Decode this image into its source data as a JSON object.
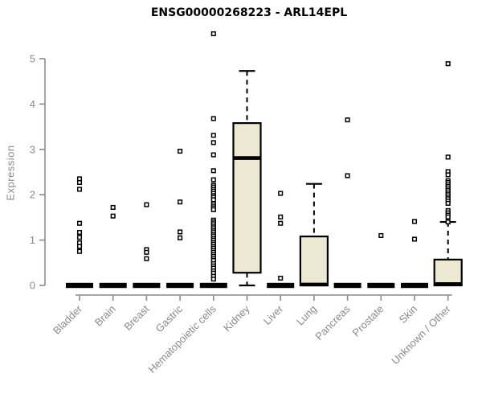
{
  "title": "ENSG00000268223 - ARL14EPL",
  "y_axis": {
    "label": "Expression",
    "ticks": [
      0,
      1,
      2,
      3,
      4,
      5
    ]
  },
  "x_axis": {
    "categories": [
      "Bladder",
      "Brain",
      "Breast",
      "Gastric",
      "Hematopoietic cells",
      "Kidney",
      "Liver",
      "Lung",
      "Pancreas",
      "Prostate",
      "Skin",
      "Unknown / Other"
    ]
  },
  "colors": {
    "background": "#ffffff",
    "box_fill": "#ede8d1",
    "box_border": "#000000",
    "median": "#000000",
    "whisker": "#000000",
    "outlier_stroke": "#000000",
    "outlier_fill": "#ffffff",
    "axis_line": "#8c8c8c",
    "axis_text": "#8a8a8a",
    "title_text": "#000000"
  },
  "chart_data": {
    "type": "boxplot",
    "title": "ENSG00000268223 - ARL14EPL",
    "xlabel": "",
    "ylabel": "Expression",
    "ylim": [
      0,
      5.6
    ],
    "y_ticks": [
      0,
      1,
      2,
      3,
      4,
      5
    ],
    "grid": false,
    "legend": false,
    "categories": [
      "Bladder",
      "Brain",
      "Breast",
      "Gastric",
      "Hematopoietic cells",
      "Kidney",
      "Liver",
      "Lung",
      "Pancreas",
      "Prostate",
      "Skin",
      "Unknown / Other"
    ],
    "series": [
      {
        "category": "Bladder",
        "whisker_low": 0,
        "q1": 0,
        "median": 0,
        "q3": 0,
        "whisker_high": 0,
        "outliers": [
          2.35,
          2.27,
          2.12,
          1.37,
          1.17,
          1.06,
          0.94,
          0.86,
          0.75
        ]
      },
      {
        "category": "Brain",
        "whisker_low": 0,
        "q1": 0,
        "median": 0,
        "q3": 0,
        "whisker_high": 0,
        "outliers": [
          1.72,
          1.53
        ]
      },
      {
        "category": "Breast",
        "whisker_low": 0,
        "q1": 0,
        "median": 0,
        "q3": 0,
        "whisker_high": 0,
        "outliers": [
          1.78,
          0.79,
          0.73,
          0.59
        ]
      },
      {
        "category": "Gastric",
        "whisker_low": 0,
        "q1": 0,
        "median": 0,
        "q3": 0,
        "whisker_high": 0,
        "outliers": [
          2.96,
          1.84,
          1.18,
          1.05
        ]
      },
      {
        "category": "Hematopoietic cells",
        "whisker_low": 0,
        "q1": 0,
        "median": 0,
        "q3": 0,
        "whisker_high": 0,
        "outliers": [
          5.55,
          3.68,
          3.31,
          3.15,
          2.88,
          2.53,
          2.33,
          2.21,
          2.17,
          2.12,
          2.08,
          2.03,
          1.98,
          1.94,
          1.89,
          1.8,
          1.75,
          1.71,
          1.67,
          1.44,
          1.4,
          1.36,
          1.31,
          1.27,
          1.22,
          1.18,
          1.13,
          1.09,
          1.04,
          1.0,
          0.95,
          0.91,
          0.86,
          0.82,
          0.77,
          0.73,
          0.68,
          0.64,
          0.59,
          0.55,
          0.48,
          0.43,
          0.38,
          0.32,
          0.27,
          0.2,
          0.14
        ]
      },
      {
        "category": "Kidney",
        "whisker_low": 0,
        "q1": 0.28,
        "median": 2.81,
        "q3": 3.58,
        "whisker_high": 4.73,
        "outliers": []
      },
      {
        "category": "Liver",
        "whisker_low": 0,
        "q1": 0,
        "median": 0,
        "q3": 0,
        "whisker_high": 0,
        "outliers": [
          2.03,
          1.51,
          1.37,
          0.16
        ]
      },
      {
        "category": "Lung",
        "whisker_low": 0,
        "q1": 0,
        "median": 0.02,
        "q3": 1.08,
        "whisker_high": 2.24,
        "outliers": []
      },
      {
        "category": "Pancreas",
        "whisker_low": 0,
        "q1": 0,
        "median": 0,
        "q3": 0,
        "whisker_high": 0,
        "outliers": [
          3.65,
          2.42
        ]
      },
      {
        "category": "Prostate",
        "whisker_low": 0,
        "q1": 0,
        "median": 0,
        "q3": 0,
        "whisker_high": 0,
        "outliers": [
          1.1
        ]
      },
      {
        "category": "Skin",
        "whisker_low": 0,
        "q1": 0,
        "median": 0,
        "q3": 0,
        "whisker_high": 0,
        "outliers": [
          1.41,
          1.02
        ]
      },
      {
        "category": "Unknown / Other",
        "whisker_low": 0,
        "q1": 0,
        "median": 0.03,
        "q3": 0.57,
        "whisker_high": 1.4,
        "outliers": [
          4.89,
          2.83,
          2.51,
          2.44,
          2.31,
          2.27,
          2.22,
          2.18,
          2.13,
          2.09,
          2.04,
          2.0,
          1.95,
          1.91,
          1.86,
          1.81,
          1.65,
          1.6,
          1.55,
          1.51,
          1.4
        ]
      }
    ]
  }
}
